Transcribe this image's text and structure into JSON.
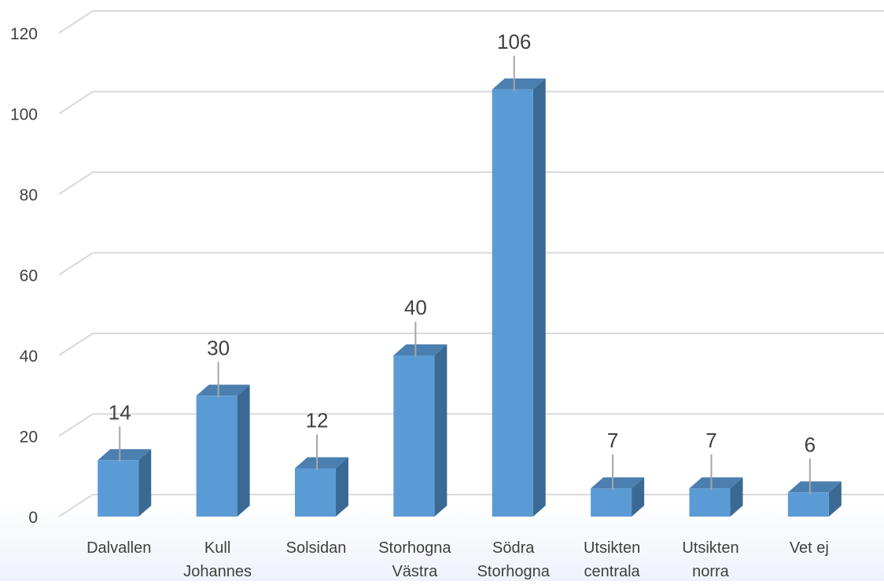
{
  "chart_data": {
    "type": "bar",
    "style": "3d-column",
    "title": "",
    "xlabel": "",
    "ylabel": "",
    "categories": [
      [
        "Dalvallen"
      ],
      [
        "Kull",
        "Johannes"
      ],
      [
        "Solsidan"
      ],
      [
        "Storhogna",
        "Västra"
      ],
      [
        "Södra",
        "Storhogna"
      ],
      [
        "Utsikten",
        "centrala"
      ],
      [
        "Utsikten",
        "norra"
      ],
      [
        "Vet ej"
      ]
    ],
    "values": [
      14,
      30,
      12,
      40,
      106,
      7,
      7,
      6
    ],
    "data_labels": [
      "14",
      "30",
      "12",
      "40",
      "106",
      "7",
      "7",
      "6"
    ],
    "ylim": [
      0,
      120
    ],
    "yticks": [
      0,
      20,
      40,
      60,
      80,
      100,
      120
    ],
    "ytick_labels": [
      "0",
      "20",
      "40",
      "60",
      "80",
      "100",
      "120"
    ],
    "grid": true,
    "legend": "none",
    "colors": {
      "bar_front": "#5b9bd5",
      "bar_side": "#3a6a94",
      "bar_top": "#4b7fb0",
      "grid": "#d9d9d9",
      "text": "#404040",
      "leader": "#a6a6a6"
    }
  }
}
